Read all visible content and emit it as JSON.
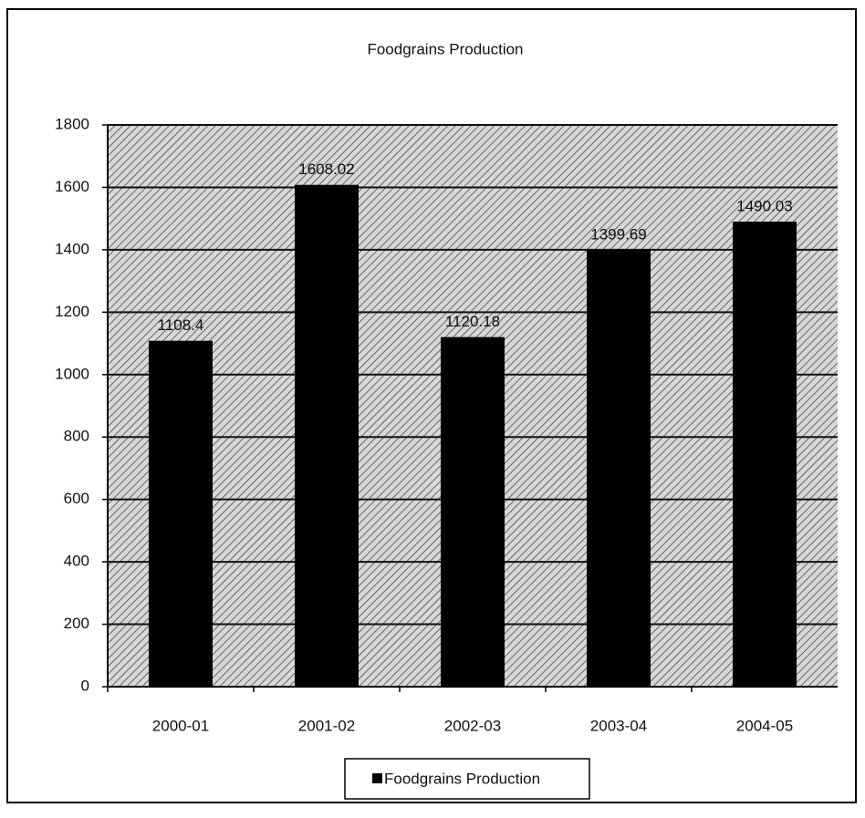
{
  "chart_data": {
    "type": "bar",
    "title": "Foodgrains Production",
    "categories": [
      "2000-01",
      "2001-02",
      "2002-03",
      "2003-04",
      "2004-05"
    ],
    "series": [
      {
        "name": "Foodgrains Production",
        "color": "#000000",
        "values": [
          1108.4,
          1608.02,
          1120.18,
          1399.69,
          1490.03
        ]
      }
    ],
    "ylim": [
      0,
      1800
    ],
    "yticks": [
      0,
      200,
      400,
      600,
      800,
      1000,
      1200,
      1400,
      1600,
      1800
    ],
    "grid": true,
    "legend": "bottom"
  }
}
